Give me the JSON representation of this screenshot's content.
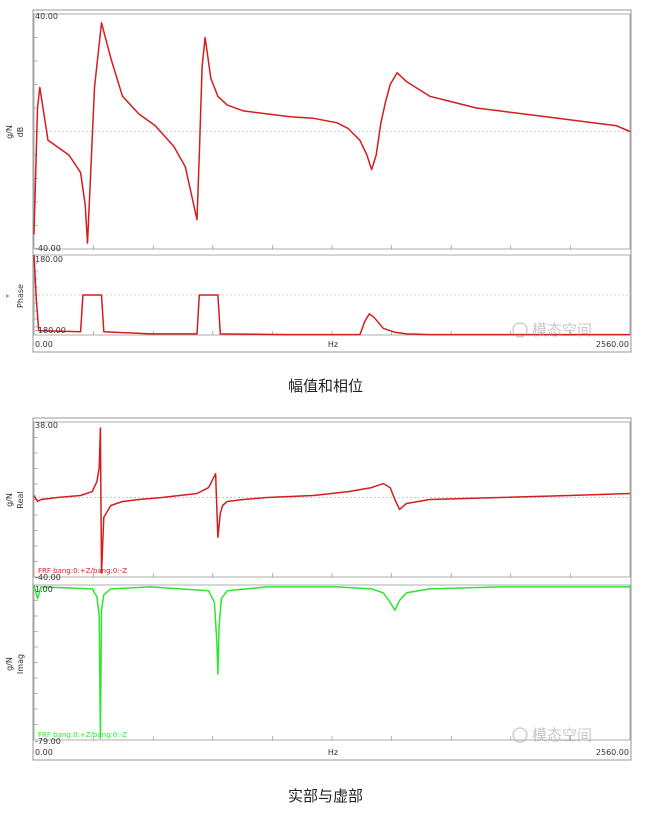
{
  "captions": {
    "top": "幅值和相位",
    "bottom": "实部与虚部"
  },
  "watermark": "模态空间",
  "colors": {
    "red": "#d21e1e",
    "green": "#2ee62e",
    "grid": "#dddddd",
    "axis": "#888888",
    "frame": "#999999",
    "zero": "#aaaaaa"
  },
  "chart_data": [
    {
      "type": "line",
      "panel": "magnitude",
      "x_tick_left": "0.00",
      "x_tick_right": "2560.00",
      "xlabel": "Hz",
      "xlim": [
        0,
        2560
      ],
      "y_tick_top": "40.00",
      "y_tick_bottom": "-40.00",
      "ylabel": [
        "g/N",
        "dB"
      ],
      "ylim": [
        -40,
        40
      ],
      "series": [
        {
          "color": "#d21e1e",
          "x": [
            0,
            15,
            25,
            60,
            150,
            200,
            220,
            230,
            240,
            260,
            290,
            330,
            380,
            450,
            520,
            600,
            650,
            700,
            710,
            722,
            735,
            760,
            790,
            830,
            900,
            1000,
            1100,
            1200,
            1300,
            1350,
            1400,
            1430,
            1450,
            1470,
            1490,
            1510,
            1530,
            1560,
            1600,
            1700,
            1800,
            1900,
            2000,
            2100,
            2200,
            2300,
            2400,
            2500,
            2560
          ],
          "y": [
            -35,
            8,
            15,
            -3,
            -8,
            -14,
            -25,
            -38,
            -20,
            15,
            37,
            25,
            12,
            6,
            2,
            -5,
            -12,
            -30,
            -8,
            22,
            32,
            18,
            12,
            9,
            7,
            6,
            5,
            4.5,
            3,
            1,
            -3,
            -8,
            -13,
            -8,
            3,
            10,
            16,
            20,
            17,
            12,
            10,
            8,
            7,
            6,
            5,
            4,
            3,
            2,
            0
          ]
        }
      ]
    },
    {
      "type": "line",
      "panel": "phase",
      "y_tick_top": "180.00",
      "y_tick_bottom": "-180.00",
      "ylabel": [
        "°",
        "Phase"
      ],
      "ylim": [
        -180,
        180
      ],
      "series": [
        {
          "color": "#d21e1e",
          "x": [
            0,
            10,
            20,
            200,
            210,
            220,
            290,
            300,
            500,
            600,
            700,
            710,
            720,
            790,
            800,
            1100,
            1200,
            1300,
            1400,
            1410,
            1420,
            1440,
            1460,
            1500,
            1550,
            1600,
            1700,
            1800,
            2000,
            2100,
            2200,
            2300,
            2500,
            2560
          ],
          "y": [
            180,
            -20,
            -160,
            -165,
            0,
            0,
            0,
            -165,
            -175,
            -175,
            -175,
            0,
            0,
            0,
            -175,
            -178,
            -178,
            -178,
            -178,
            -150,
            -120,
            -85,
            -100,
            -150,
            -168,
            -175,
            -178,
            -178,
            -178,
            -178,
            -178,
            -178,
            -178,
            -178
          ]
        }
      ]
    },
    {
      "type": "line",
      "panel": "real",
      "x_tick_left": "0.00",
      "x_tick_right": "2560.00",
      "xlabel": "Hz",
      "xlim": [
        0,
        2560
      ],
      "y_tick_top": "38.00",
      "y_tick_bottom": "-40.00",
      "ylabel": [
        "g/N",
        "Real"
      ],
      "ylim": [
        -40,
        38
      ],
      "series": [
        {
          "name": "FRF bang:0:+Z/bang:0:-Z",
          "color": "#d21e1e",
          "x": [
            0,
            15,
            30,
            100,
            200,
            250,
            270,
            280,
            285,
            290,
            300,
            330,
            380,
            450,
            550,
            700,
            750,
            780,
            790,
            800,
            810,
            830,
            900,
            1000,
            1200,
            1350,
            1450,
            1500,
            1530,
            1550,
            1570,
            1600,
            1700,
            2000,
            2300,
            2560
          ],
          "y": [
            1,
            -2,
            -1,
            0,
            1,
            3,
            8,
            15,
            35,
            -38,
            -10,
            -4,
            -2,
            -1,
            0,
            2,
            5,
            12,
            -20,
            -8,
            -4,
            -2,
            -1,
            0,
            1,
            3,
            5,
            7,
            5,
            -1,
            -6,
            -3,
            -1,
            0,
            1,
            2
          ]
        }
      ]
    },
    {
      "type": "line",
      "panel": "imaginary",
      "y_tick_top": "1.00",
      "y_tick_bottom": "-79.00",
      "ylabel": [
        "g/N",
        "Imag"
      ],
      "ylim": [
        -79,
        1
      ],
      "series": [
        {
          "name": "FRF bang:0:+Z/bang:0:-Z",
          "color": "#2ee62e",
          "x": [
            0,
            15,
            30,
            250,
            270,
            280,
            285,
            290,
            300,
            330,
            500,
            750,
            775,
            785,
            790,
            795,
            805,
            830,
            1000,
            1300,
            1450,
            1500,
            1530,
            1550,
            1570,
            1600,
            1700,
            2000,
            2560
          ],
          "y": [
            1,
            -6,
            0,
            -1,
            -5,
            -15,
            -78,
            -12,
            -4,
            -1,
            0,
            -2,
            -8,
            -28,
            -45,
            -20,
            -6,
            -2,
            0,
            0,
            -1,
            -3,
            -8,
            -12,
            -7,
            -3,
            -1,
            0,
            0
          ]
        }
      ]
    }
  ]
}
